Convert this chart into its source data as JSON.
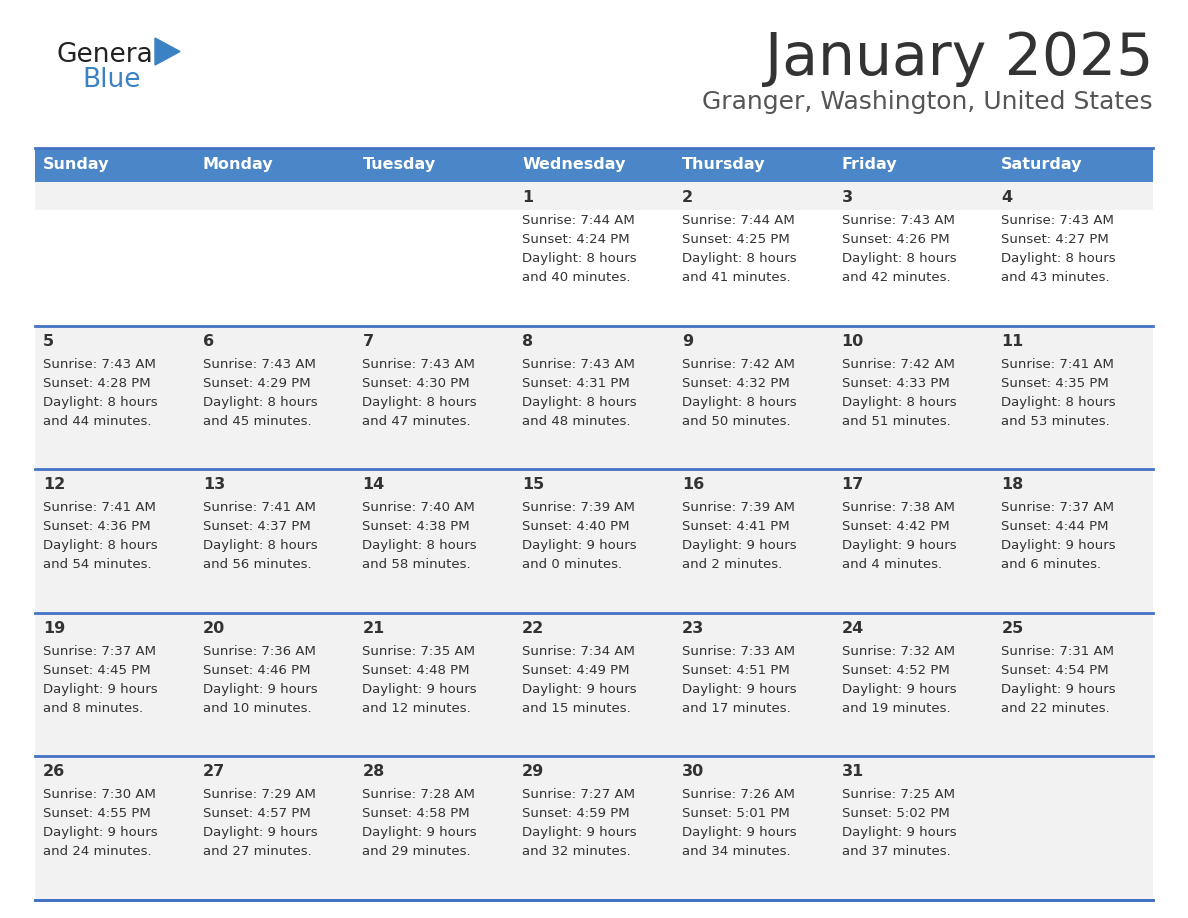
{
  "title": "January 2025",
  "subtitle": "Granger, Washington, United States",
  "header_color": "#4a86c8",
  "header_text_color": "#ffffff",
  "cell_bg_light": "#f2f2f2",
  "cell_bg_white": "#ffffff",
  "divider_color": "#4472c4",
  "text_color": "#333333",
  "days_of_week": [
    "Sunday",
    "Monday",
    "Tuesday",
    "Wednesday",
    "Thursday",
    "Friday",
    "Saturday"
  ],
  "calendar_data": [
    [
      {
        "day": null,
        "sunrise": null,
        "sunset": null,
        "daylight": null
      },
      {
        "day": null,
        "sunrise": null,
        "sunset": null,
        "daylight": null
      },
      {
        "day": null,
        "sunrise": null,
        "sunset": null,
        "daylight": null
      },
      {
        "day": 1,
        "sunrise": "7:44 AM",
        "sunset": "4:24 PM",
        "daylight_line1": "Daylight: 8 hours",
        "daylight_line2": "and 40 minutes."
      },
      {
        "day": 2,
        "sunrise": "7:44 AM",
        "sunset": "4:25 PM",
        "daylight_line1": "Daylight: 8 hours",
        "daylight_line2": "and 41 minutes."
      },
      {
        "day": 3,
        "sunrise": "7:43 AM",
        "sunset": "4:26 PM",
        "daylight_line1": "Daylight: 8 hours",
        "daylight_line2": "and 42 minutes."
      },
      {
        "day": 4,
        "sunrise": "7:43 AM",
        "sunset": "4:27 PM",
        "daylight_line1": "Daylight: 8 hours",
        "daylight_line2": "and 43 minutes."
      }
    ],
    [
      {
        "day": 5,
        "sunrise": "7:43 AM",
        "sunset": "4:28 PM",
        "daylight_line1": "Daylight: 8 hours",
        "daylight_line2": "and 44 minutes."
      },
      {
        "day": 6,
        "sunrise": "7:43 AM",
        "sunset": "4:29 PM",
        "daylight_line1": "Daylight: 8 hours",
        "daylight_line2": "and 45 minutes."
      },
      {
        "day": 7,
        "sunrise": "7:43 AM",
        "sunset": "4:30 PM",
        "daylight_line1": "Daylight: 8 hours",
        "daylight_line2": "and 47 minutes."
      },
      {
        "day": 8,
        "sunrise": "7:43 AM",
        "sunset": "4:31 PM",
        "daylight_line1": "Daylight: 8 hours",
        "daylight_line2": "and 48 minutes."
      },
      {
        "day": 9,
        "sunrise": "7:42 AM",
        "sunset": "4:32 PM",
        "daylight_line1": "Daylight: 8 hours",
        "daylight_line2": "and 50 minutes."
      },
      {
        "day": 10,
        "sunrise": "7:42 AM",
        "sunset": "4:33 PM",
        "daylight_line1": "Daylight: 8 hours",
        "daylight_line2": "and 51 minutes."
      },
      {
        "day": 11,
        "sunrise": "7:41 AM",
        "sunset": "4:35 PM",
        "daylight_line1": "Daylight: 8 hours",
        "daylight_line2": "and 53 minutes."
      }
    ],
    [
      {
        "day": 12,
        "sunrise": "7:41 AM",
        "sunset": "4:36 PM",
        "daylight_line1": "Daylight: 8 hours",
        "daylight_line2": "and 54 minutes."
      },
      {
        "day": 13,
        "sunrise": "7:41 AM",
        "sunset": "4:37 PM",
        "daylight_line1": "Daylight: 8 hours",
        "daylight_line2": "and 56 minutes."
      },
      {
        "day": 14,
        "sunrise": "7:40 AM",
        "sunset": "4:38 PM",
        "daylight_line1": "Daylight: 8 hours",
        "daylight_line2": "and 58 minutes."
      },
      {
        "day": 15,
        "sunrise": "7:39 AM",
        "sunset": "4:40 PM",
        "daylight_line1": "Daylight: 9 hours",
        "daylight_line2": "and 0 minutes."
      },
      {
        "day": 16,
        "sunrise": "7:39 AM",
        "sunset": "4:41 PM",
        "daylight_line1": "Daylight: 9 hours",
        "daylight_line2": "and 2 minutes."
      },
      {
        "day": 17,
        "sunrise": "7:38 AM",
        "sunset": "4:42 PM",
        "daylight_line1": "Daylight: 9 hours",
        "daylight_line2": "and 4 minutes."
      },
      {
        "day": 18,
        "sunrise": "7:37 AM",
        "sunset": "4:44 PM",
        "daylight_line1": "Daylight: 9 hours",
        "daylight_line2": "and 6 minutes."
      }
    ],
    [
      {
        "day": 19,
        "sunrise": "7:37 AM",
        "sunset": "4:45 PM",
        "daylight_line1": "Daylight: 9 hours",
        "daylight_line2": "and 8 minutes."
      },
      {
        "day": 20,
        "sunrise": "7:36 AM",
        "sunset": "4:46 PM",
        "daylight_line1": "Daylight: 9 hours",
        "daylight_line2": "and 10 minutes."
      },
      {
        "day": 21,
        "sunrise": "7:35 AM",
        "sunset": "4:48 PM",
        "daylight_line1": "Daylight: 9 hours",
        "daylight_line2": "and 12 minutes."
      },
      {
        "day": 22,
        "sunrise": "7:34 AM",
        "sunset": "4:49 PM",
        "daylight_line1": "Daylight: 9 hours",
        "daylight_line2": "and 15 minutes."
      },
      {
        "day": 23,
        "sunrise": "7:33 AM",
        "sunset": "4:51 PM",
        "daylight_line1": "Daylight: 9 hours",
        "daylight_line2": "and 17 minutes."
      },
      {
        "day": 24,
        "sunrise": "7:32 AM",
        "sunset": "4:52 PM",
        "daylight_line1": "Daylight: 9 hours",
        "daylight_line2": "and 19 minutes."
      },
      {
        "day": 25,
        "sunrise": "7:31 AM",
        "sunset": "4:54 PM",
        "daylight_line1": "Daylight: 9 hours",
        "daylight_line2": "and 22 minutes."
      }
    ],
    [
      {
        "day": 26,
        "sunrise": "7:30 AM",
        "sunset": "4:55 PM",
        "daylight_line1": "Daylight: 9 hours",
        "daylight_line2": "and 24 minutes."
      },
      {
        "day": 27,
        "sunrise": "7:29 AM",
        "sunset": "4:57 PM",
        "daylight_line1": "Daylight: 9 hours",
        "daylight_line2": "and 27 minutes."
      },
      {
        "day": 28,
        "sunrise": "7:28 AM",
        "sunset": "4:58 PM",
        "daylight_line1": "Daylight: 9 hours",
        "daylight_line2": "and 29 minutes."
      },
      {
        "day": 29,
        "sunrise": "7:27 AM",
        "sunset": "4:59 PM",
        "daylight_line1": "Daylight: 9 hours",
        "daylight_line2": "and 32 minutes."
      },
      {
        "day": 30,
        "sunrise": "7:26 AM",
        "sunset": "5:01 PM",
        "daylight_line1": "Daylight: 9 hours",
        "daylight_line2": "and 34 minutes."
      },
      {
        "day": 31,
        "sunrise": "7:25 AM",
        "sunset": "5:02 PM",
        "daylight_line1": "Daylight: 9 hours",
        "daylight_line2": "and 37 minutes."
      },
      {
        "day": null,
        "sunrise": null,
        "sunset": null,
        "daylight_line1": null,
        "daylight_line2": null
      }
    ]
  ]
}
